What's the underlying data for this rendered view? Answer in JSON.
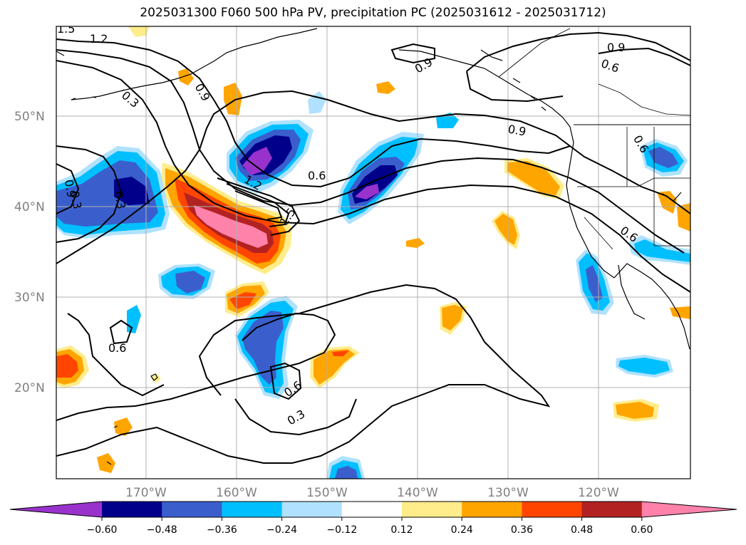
{
  "title": "2025031300 F060 500 hPa PV, precipitation PC (2025031612 - 2025031712)",
  "map": {
    "lat_labels": [
      {
        "label": "50°N",
        "lat": 50
      },
      {
        "label": "40°N",
        "lat": 40
      },
      {
        "label": "30°N",
        "lat": 30
      },
      {
        "label": "20°N",
        "lat": 20
      }
    ],
    "lon_labels": [
      {
        "label": "170°W",
        "lon": -170
      },
      {
        "label": "160°W",
        "lon": -160
      },
      {
        "label": "150°W",
        "lon": -150
      },
      {
        "label": "140°W",
        "lon": -140
      },
      {
        "label": "130°W",
        "lon": -130
      },
      {
        "label": "120°W",
        "lon": -120
      }
    ],
    "contour_labels": [
      "1.5",
      "1.2",
      "0.9",
      "0.6",
      "0.3",
      "0.9",
      "0.6",
      "0.9",
      "0.9",
      "0.6",
      "1.2",
      "1.5",
      "0.6",
      "0.3",
      "0.6",
      "0.6",
      "0.3",
      "0.9",
      "0.3"
    ],
    "grid_color": "#b0b0b0"
  },
  "colorbar": {
    "ticks": [
      "−0.60",
      "−0.48",
      "−0.36",
      "−0.24",
      "−0.12",
      "0.12",
      "0.24",
      "0.36",
      "0.48",
      "0.60"
    ],
    "colors": [
      "#9932cc",
      "#00008b",
      "#3a5fcd",
      "#00bfff",
      "#b0e2ff",
      "#ffffff",
      "#ffec8b",
      "#ffa500",
      "#ff4500",
      "#b22222",
      "#ff82ab"
    ]
  }
}
